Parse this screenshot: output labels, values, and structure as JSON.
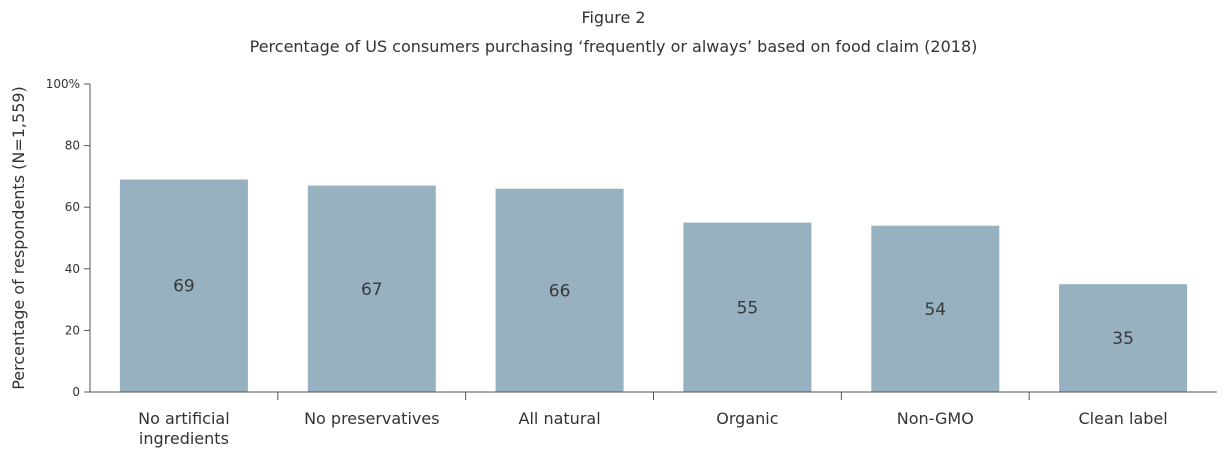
{
  "figure_label": "Figure 2",
  "chart_data": {
    "type": "bar",
    "title": "Percentage of US consumers purchasing ‘frequently or always’ based on food claim (2018)",
    "xlabel": "",
    "ylabel": "Percentage of respondents (N=1,559)",
    "ylim": [
      0,
      100
    ],
    "yticks": [
      0,
      20,
      40,
      60,
      80,
      100
    ],
    "ytick_labels": [
      "0",
      "20",
      "40",
      "60",
      "80",
      "100%"
    ],
    "categories": [
      [
        "No artificial",
        "ingredients"
      ],
      [
        "No preservatives"
      ],
      [
        "All natural"
      ],
      [
        "Organic"
      ],
      [
        "Non-GMO"
      ],
      [
        "Clean label"
      ]
    ],
    "values": [
      69,
      67,
      66,
      55,
      54,
      35
    ],
    "bar_color": "#97b1c1",
    "axis_color": "#555555",
    "grid": false,
    "legend": "none"
  }
}
